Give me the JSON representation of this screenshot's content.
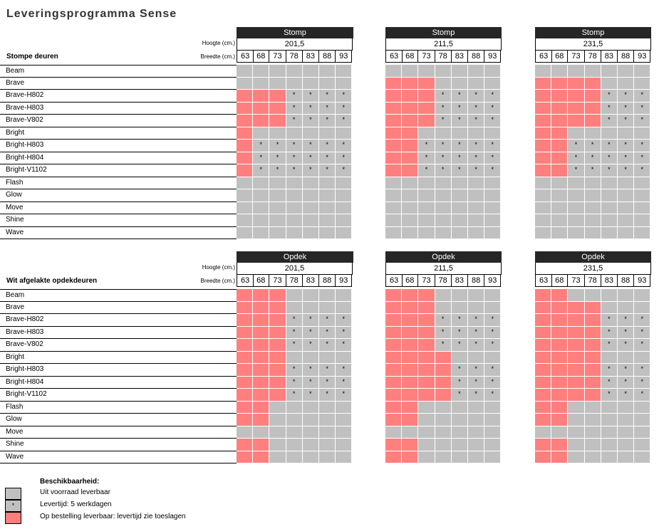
{
  "title": "Leveringsprogramma Sense",
  "labels": {
    "hoogte": "Hoogte (cm.)",
    "breedte": "Breedte (cm.)"
  },
  "widths": [
    "63",
    "68",
    "73",
    "78",
    "83",
    "88",
    "93"
  ],
  "colors": {
    "grey": "#c0c0c0",
    "red": "#ff7f7f",
    "header_bar": "#262626"
  },
  "sections": [
    {
      "title": "Stompe deuren",
      "blocks": [
        {
          "type": "Stomp",
          "height": "201,5",
          "rows": [
            "GGGGGGG",
            "GGGGGGG",
            "RRR****",
            "RRR****",
            "RRR****",
            "RGGGGGG",
            "R******",
            "R******",
            "R******",
            "GGGGGGG",
            "GGGGGGG",
            "GGGGGGG",
            "GGGGGGG",
            "GGGGGGG"
          ]
        },
        {
          "type": "Stomp",
          "height": "211,5",
          "rows": [
            "GGGGGGG",
            "RRRGGGG",
            "RRR****",
            "RRR****",
            "RRR****",
            "RRGGGGG",
            "RR*****",
            "RR*****",
            "RR*****",
            "GGGGGGG",
            "GGGGGGG",
            "GGGGGGG",
            "GGGGGGG",
            "GGGGGGG"
          ]
        },
        {
          "type": "Stomp",
          "height": "231,5",
          "rows": [
            "GGGGGGG",
            "RRRRGGG",
            "RRRR***",
            "RRRR***",
            "RRRR***",
            "RRGGGGG",
            "RR*****",
            "RR*****",
            "RR*****",
            "GGGGGGG",
            "GGGGGGG",
            "GGGGGGG",
            "GGGGGGG",
            "GGGGGGG"
          ]
        }
      ],
      "products": [
        "Beam",
        "Brave",
        "Brave-H802",
        "Brave-H803",
        "Brave-V802",
        "Bright",
        "Bright-H803",
        "Bright-H804",
        "Bright-V1102",
        "Flash",
        "Glow",
        "Move",
        "Shine",
        "Wave"
      ]
    },
    {
      "title": "Wit afgelakte opdekdeuren",
      "blocks": [
        {
          "type": "Opdek",
          "height": "201,5",
          "rows": [
            "RRRGGGG",
            "RRRGGGG",
            "RRR****",
            "RRR****",
            "RRR****",
            "RRRGGGG",
            "RRR****",
            "RRR****",
            "RRR****",
            "RRGGGGG",
            "RRGGGGG",
            "GGGGGGG",
            "RRGGGGG",
            "RRGGGGG"
          ]
        },
        {
          "type": "Opdek",
          "height": "211,5",
          "rows": [
            "RRRGGGG",
            "RRRGGGG",
            "RRR****",
            "RRR****",
            "RRR****",
            "RRRRGGG",
            "RRRR***",
            "RRRR***",
            "RRRR***",
            "RRGGGGG",
            "RRGGGGG",
            "GGGGGGG",
            "RRGGGGG",
            "RRGGGGG"
          ]
        },
        {
          "type": "Opdek",
          "height": "231,5",
          "rows": [
            "RRGGGGG",
            "RRRRGGG",
            "RRRR***",
            "RRRR***",
            "RRRR***",
            "RRRRGGG",
            "RRRR***",
            "RRRR***",
            "RRRR***",
            "RRGGGGG",
            "RRGGGGG",
            "GGGGGGG",
            "RRGGGGG",
            "RRGGGGG"
          ]
        }
      ],
      "products": [
        "Beam",
        "Brave",
        "Brave-H802",
        "Brave-H803",
        "Brave-V802",
        "Bright",
        "Bright-H803",
        "Bright-H804",
        "Bright-V1102",
        "Flash",
        "Glow",
        "Move",
        "Shine",
        "Wave"
      ]
    }
  ],
  "legend": {
    "title": "Beschikbaarheid:",
    "items": [
      {
        "symbol": "",
        "color": "#c0c0c0",
        "text": "Uit voorraad leverbaar"
      },
      {
        "symbol": "*",
        "color": "#c0c0c0",
        "text": "Levertijd: 5 werkdagen"
      },
      {
        "symbol": "",
        "color": "#ff7f7f",
        "text": "Op bestelling leverbaar: levertijd zie toeslagen"
      }
    ]
  }
}
